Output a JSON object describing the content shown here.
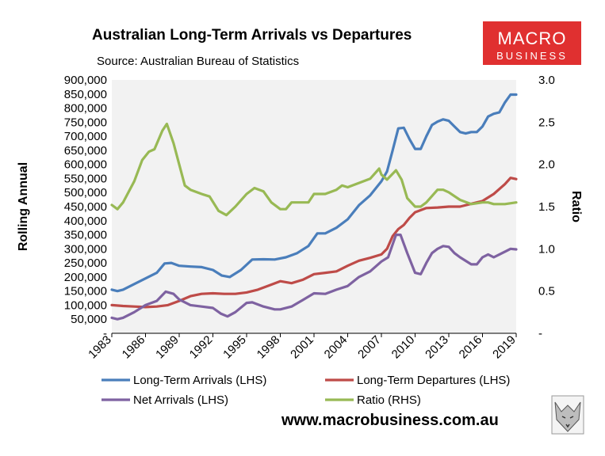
{
  "chart_data": {
    "type": "line",
    "title": "Australian Long-Term Arrivals vs Departures",
    "subtitle": "Source: Australian Bureau of Statistics",
    "ylabel": "Rolling Annual",
    "y2label": "Ratio",
    "ylim": [
      0,
      900000
    ],
    "y2lim": [
      0,
      3.0
    ],
    "xlim": [
      1983,
      2019
    ],
    "x_ticks": [
      "1983",
      "1986",
      "1989",
      "1992",
      "1995",
      "1998",
      "2001",
      "2004",
      "2007",
      "2010",
      "2013",
      "2016",
      "2019"
    ],
    "y_ticks": [
      "-",
      "50,000",
      "100,000",
      "150,000",
      "200,000",
      "250,000",
      "300,000",
      "350,000",
      "400,000",
      "450,000",
      "500,000",
      "550,000",
      "600,000",
      "650,000",
      "700,000",
      "750,000",
      "800,000",
      "850,000",
      "900,000"
    ],
    "y2_ticks": [
      "-",
      "0.5",
      "1.0",
      "1.5",
      "2.0",
      "2.5",
      "3.0"
    ],
    "series": [
      {
        "name": "Long-Term Arrivals (LHS)",
        "axis": "left",
        "color": "#4a7ebb",
        "x": [
          1983,
          1983.5,
          1984,
          1985,
          1986,
          1987,
          1987.7,
          1988.3,
          1989,
          1990,
          1991,
          1992,
          1992.8,
          1993.5,
          1994.5,
          1995.5,
          1996.5,
          1997.5,
          1998.5,
          1999.5,
          2000.5,
          2001.3,
          2002,
          2003,
          2004,
          2005,
          2006,
          2007,
          2007.5,
          2008,
          2008.5,
          2009,
          2009.5,
          2010,
          2010.5,
          2011,
          2011.5,
          2012,
          2012.5,
          2013,
          2013.5,
          2014,
          2014.5,
          2015,
          2015.5,
          2016,
          2016.5,
          2017,
          2017.5,
          2018,
          2018.5,
          2019
        ],
        "values": [
          155000,
          150000,
          155000,
          175000,
          195000,
          215000,
          248000,
          250000,
          240000,
          237000,
          235000,
          225000,
          205000,
          200000,
          225000,
          262000,
          263000,
          262000,
          270000,
          285000,
          310000,
          355000,
          355000,
          375000,
          405000,
          455000,
          490000,
          540000,
          575000,
          650000,
          728000,
          730000,
          690000,
          655000,
          655000,
          700000,
          740000,
          752000,
          760000,
          755000,
          735000,
          715000,
          710000,
          715000,
          715000,
          735000,
          770000,
          780000,
          785000,
          820000,
          848000,
          848000
        ]
      },
      {
        "name": "Long-Term Departures (LHS)",
        "axis": "left",
        "color": "#be4b48",
        "x": [
          1983,
          1984,
          1985,
          1986,
          1987,
          1988,
          1989,
          1990,
          1991,
          1992,
          1993,
          1994,
          1995,
          1996,
          1997,
          1998,
          1999,
          2000,
          2001,
          2002,
          2003,
          2004,
          2005,
          2006,
          2007,
          2007.5,
          2008,
          2008.5,
          2009,
          2009.5,
          2010,
          2011,
          2012,
          2013,
          2014,
          2015,
          2016,
          2017,
          2018,
          2018.5,
          2019
        ],
        "values": [
          100000,
          97000,
          95000,
          93000,
          95000,
          100000,
          115000,
          132000,
          140000,
          142000,
          140000,
          140000,
          145000,
          155000,
          170000,
          185000,
          178000,
          190000,
          210000,
          215000,
          220000,
          240000,
          258000,
          268000,
          280000,
          300000,
          345000,
          370000,
          385000,
          410000,
          430000,
          445000,
          447000,
          450000,
          450000,
          460000,
          470000,
          495000,
          530000,
          552000,
          548000
        ]
      },
      {
        "name": "Net Arrivals (LHS)",
        "axis": "left",
        "color": "#7e62a1",
        "x": [
          1983,
          1983.5,
          1984,
          1985,
          1986,
          1987,
          1987.8,
          1988.5,
          1989,
          1990,
          1991,
          1992,
          1992.7,
          1993.3,
          1994,
          1995,
          1995.5,
          1996.5,
          1997.5,
          1998,
          1999,
          2000,
          2001,
          2002,
          2003,
          2004,
          2005,
          2006,
          2007,
          2007.6,
          2008.3,
          2008.7,
          2009.3,
          2010,
          2010.5,
          2011,
          2011.5,
          2012,
          2012.5,
          2013,
          2013.5,
          2014,
          2015,
          2015.5,
          2016,
          2016.5,
          2017,
          2017.5,
          2018,
          2018.5,
          2019
        ],
        "values": [
          55000,
          50000,
          55000,
          75000,
          100000,
          115000,
          148000,
          140000,
          120000,
          100000,
          95000,
          90000,
          70000,
          60000,
          75000,
          108000,
          110000,
          95000,
          85000,
          85000,
          95000,
          118000,
          142000,
          140000,
          155000,
          168000,
          200000,
          220000,
          255000,
          270000,
          350000,
          350000,
          285000,
          215000,
          210000,
          250000,
          285000,
          300000,
          310000,
          307000,
          285000,
          270000,
          245000,
          245000,
          270000,
          280000,
          270000,
          280000,
          290000,
          300000,
          298000
        ]
      },
      {
        "name": "Ratio (RHS)",
        "axis": "right",
        "color": "#98b954",
        "x": [
          1983,
          1983.5,
          1984,
          1985,
          1985.7,
          1986.3,
          1986.8,
          1987.5,
          1987.9,
          1988.5,
          1989,
          1989.5,
          1990,
          1991,
          1991.7,
          1992.5,
          1993.2,
          1994,
          1995,
          1995.7,
          1996.5,
          1997.2,
          1998,
          1998.5,
          1999,
          2000,
          2000.5,
          2001,
          2002,
          2003,
          2003.5,
          2004,
          2005,
          2006,
          2006.8,
          2007,
          2007.5,
          2008.3,
          2008.8,
          2009.3,
          2010,
          2010.5,
          2011,
          2012,
          2012.5,
          2013,
          2014,
          2015,
          2016,
          2016.5,
          2017,
          2018,
          2019
        ],
        "values": [
          1.52,
          1.47,
          1.55,
          1.8,
          2.05,
          2.15,
          2.18,
          2.4,
          2.48,
          2.25,
          2.0,
          1.75,
          1.7,
          1.65,
          1.62,
          1.45,
          1.4,
          1.5,
          1.65,
          1.72,
          1.68,
          1.55,
          1.47,
          1.47,
          1.55,
          1.55,
          1.55,
          1.65,
          1.65,
          1.7,
          1.75,
          1.73,
          1.78,
          1.83,
          1.95,
          1.88,
          1.82,
          1.93,
          1.82,
          1.6,
          1.5,
          1.5,
          1.55,
          1.7,
          1.7,
          1.67,
          1.58,
          1.53,
          1.55,
          1.55,
          1.53,
          1.53,
          1.55
        ]
      }
    ],
    "legend": [
      "Long-Term Arrivals (LHS)",
      "Long-Term Departures (LHS)",
      "Net Arrivals (LHS)",
      "Ratio (RHS)"
    ],
    "legend_position": "bottom",
    "plot_background": "#f2f2f2",
    "grid": false
  },
  "branding": {
    "logo_top": "MACRO",
    "logo_bottom": "BUSINESS",
    "logo_color": "#e03030",
    "website": "www.macrobusiness.com.au"
  }
}
